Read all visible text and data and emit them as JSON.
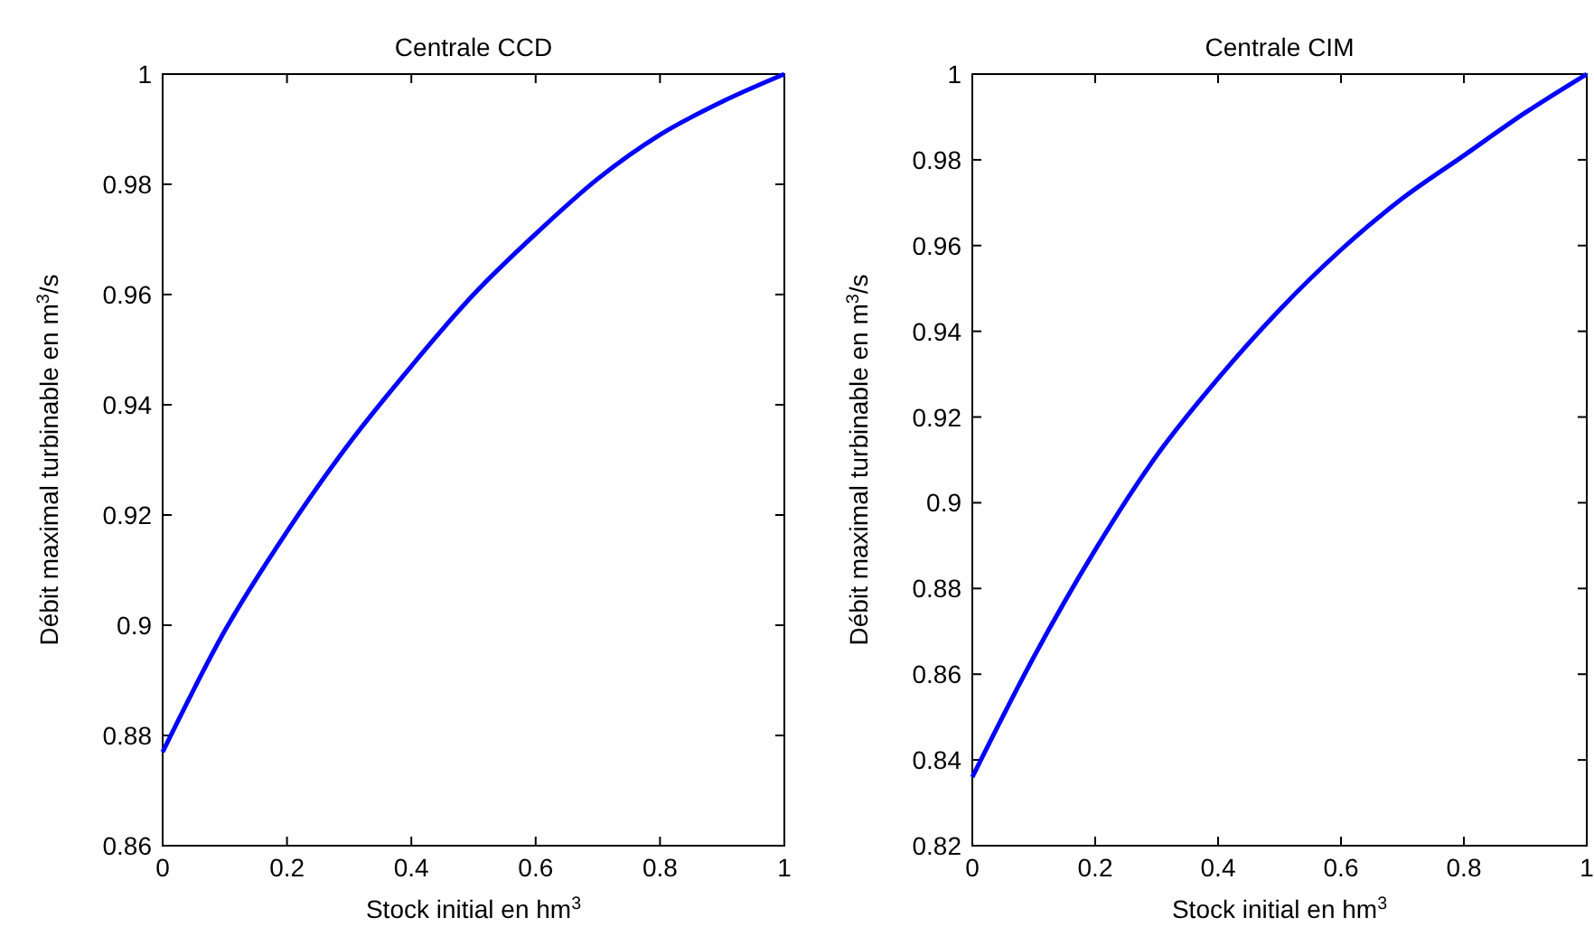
{
  "chart_data": [
    {
      "type": "line",
      "title": "Centrale CCD",
      "xlabel": "Stock initial en hm$^{3}$",
      "ylabel": "Débit maximal turbinable en m$^{3}$/s",
      "x": [
        0,
        0.1,
        0.2,
        0.3,
        0.4,
        0.5,
        0.6,
        0.7,
        0.8,
        0.9,
        1
      ],
      "series": [
        {
          "color": "#0000ff",
          "values": [
            0.877,
            0.899,
            0.917,
            0.933,
            0.947,
            0.96,
            0.971,
            0.981,
            0.989,
            0.995,
            1.0
          ]
        }
      ],
      "xlim": [
        0,
        1
      ],
      "xticks": [
        0,
        0.2,
        0.4,
        0.6,
        0.8,
        1
      ],
      "ylim": [
        0.86,
        1
      ],
      "yticks": [
        0.86,
        0.88,
        0.9,
        0.92,
        0.94,
        0.96,
        0.98,
        1
      ],
      "grid": false,
      "line_style": "solid"
    },
    {
      "type": "line",
      "title": "Centrale CIM",
      "xlabel": "Stock initial en hm$^{3}$",
      "ylabel": "Débit maximal turbinable en m$^{3}$/s",
      "x": [
        0,
        0.1,
        0.2,
        0.3,
        0.4,
        0.5,
        0.6,
        0.7,
        0.8,
        0.9,
        1
      ],
      "series": [
        {
          "color": "#0000ff",
          "values": [
            0.836,
            0.864,
            0.889,
            0.911,
            0.929,
            0.945,
            0.959,
            0.971,
            0.981,
            0.991,
            1.0
          ]
        }
      ],
      "xlim": [
        0,
        1
      ],
      "xticks": [
        0,
        0.2,
        0.4,
        0.6,
        0.8,
        1
      ],
      "ylim": [
        0.82,
        1
      ],
      "yticks": [
        0.82,
        0.84,
        0.86,
        0.88,
        0.9,
        0.92,
        0.94,
        0.96,
        0.98,
        1
      ],
      "grid": false,
      "line_style": "solid"
    }
  ]
}
